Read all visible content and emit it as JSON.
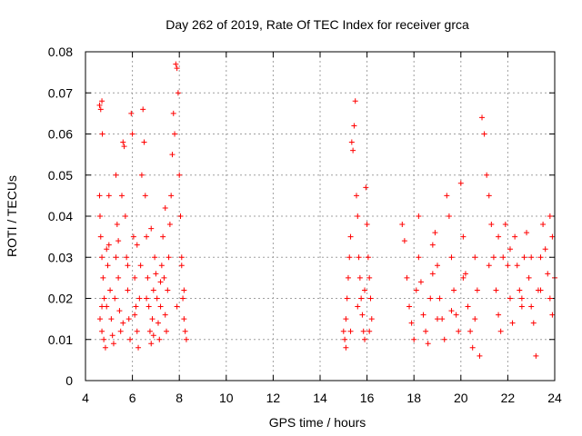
{
  "chart_data": {
    "type": "scatter",
    "title": "Day 262 of 2019, Rate Of TEC Index for receiver grca",
    "xlabel": "GPS time / hours",
    "ylabel": "ROTI / TECUs",
    "xlim": [
      4,
      24
    ],
    "ylim": [
      0,
      0.08
    ],
    "xticks": [
      4,
      6,
      8,
      10,
      12,
      14,
      16,
      18,
      20,
      22,
      24
    ],
    "yticks": [
      0,
      0.01,
      0.02,
      0.03,
      0.04,
      0.05,
      0.06,
      0.07,
      0.08
    ],
    "ytick_labels": [
      "0",
      "0.01",
      "0.02",
      "0.03",
      "0.04",
      "0.05",
      "0.06",
      "0.07",
      "0.08"
    ],
    "grid": true,
    "marker": "+",
    "color": "#ff0000",
    "series": [
      {
        "points": [
          [
            4.6,
            0.067
          ],
          [
            4.65,
            0.066
          ],
          [
            4.7,
            0.068
          ],
          [
            4.72,
            0.06
          ],
          [
            4.6,
            0.045
          ],
          [
            4.62,
            0.04
          ],
          [
            4.65,
            0.035
          ],
          [
            4.7,
            0.03
          ],
          [
            4.75,
            0.025
          ],
          [
            4.8,
            0.02
          ],
          [
            4.62,
            0.015
          ],
          [
            4.7,
            0.012
          ],
          [
            4.78,
            0.01
          ],
          [
            4.85,
            0.008
          ],
          [
            4.9,
            0.018
          ],
          [
            4.95,
            0.028
          ],
          [
            5.0,
            0.033
          ],
          [
            5.05,
            0.022
          ],
          [
            5.1,
            0.015
          ],
          [
            5.15,
            0.011
          ],
          [
            5.2,
            0.009
          ],
          [
            5.25,
            0.02
          ],
          [
            5.3,
            0.03
          ],
          [
            5.35,
            0.038
          ],
          [
            5.4,
            0.025
          ],
          [
            5.45,
            0.017
          ],
          [
            5.5,
            0.012
          ],
          [
            5.55,
            0.045
          ],
          [
            5.6,
            0.058
          ],
          [
            5.65,
            0.057
          ],
          [
            5.7,
            0.04
          ],
          [
            5.75,
            0.03
          ],
          [
            5.8,
            0.022
          ],
          [
            5.85,
            0.015
          ],
          [
            5.9,
            0.01
          ],
          [
            5.95,
            0.065
          ],
          [
            6.0,
            0.06
          ],
          [
            6.05,
            0.035
          ],
          [
            6.1,
            0.025
          ],
          [
            6.15,
            0.018
          ],
          [
            6.2,
            0.012
          ],
          [
            6.25,
            0.008
          ],
          [
            6.3,
            0.02
          ],
          [
            6.35,
            0.028
          ],
          [
            6.4,
            0.05
          ],
          [
            6.45,
            0.066
          ],
          [
            6.5,
            0.058
          ],
          [
            6.55,
            0.045
          ],
          [
            6.6,
            0.035
          ],
          [
            6.65,
            0.025
          ],
          [
            6.7,
            0.018
          ],
          [
            6.75,
            0.012
          ],
          [
            6.8,
            0.009
          ],
          [
            6.85,
            0.015
          ],
          [
            6.9,
            0.022
          ],
          [
            6.95,
            0.03
          ],
          [
            7.0,
            0.026
          ],
          [
            7.05,
            0.02
          ],
          [
            7.1,
            0.014
          ],
          [
            7.15,
            0.01
          ],
          [
            7.2,
            0.018
          ],
          [
            7.25,
            0.028
          ],
          [
            7.3,
            0.035
          ],
          [
            7.35,
            0.025
          ],
          [
            7.4,
            0.016
          ],
          [
            7.45,
            0.012
          ],
          [
            7.5,
            0.022
          ],
          [
            7.55,
            0.03
          ],
          [
            7.6,
            0.038
          ],
          [
            7.65,
            0.045
          ],
          [
            7.7,
            0.055
          ],
          [
            7.75,
            0.065
          ],
          [
            7.8,
            0.06
          ],
          [
            7.85,
            0.077
          ],
          [
            7.9,
            0.076
          ],
          [
            7.95,
            0.07
          ],
          [
            8.0,
            0.05
          ],
          [
            8.05,
            0.04
          ],
          [
            8.1,
            0.03
          ],
          [
            8.15,
            0.02
          ],
          [
            8.2,
            0.015
          ],
          [
            8.25,
            0.012
          ],
          [
            8.3,
            0.01
          ],
          [
            5.0,
            0.045
          ],
          [
            5.3,
            0.05
          ],
          [
            5.8,
            0.028
          ],
          [
            6.2,
            0.033
          ],
          [
            6.8,
            0.037
          ],
          [
            7.4,
            0.042
          ],
          [
            8.1,
            0.028
          ],
          [
            4.9,
            0.032
          ],
          [
            5.4,
            0.034
          ],
          [
            6.1,
            0.016
          ],
          [
            6.6,
            0.02
          ],
          [
            7.2,
            0.024
          ],
          [
            7.9,
            0.018
          ],
          [
            8.2,
            0.022
          ],
          [
            4.7,
            0.018
          ],
          [
            5.6,
            0.014
          ],
          [
            6.9,
            0.011
          ],
          [
            15.0,
            0.012
          ],
          [
            15.05,
            0.01
          ],
          [
            15.1,
            0.015
          ],
          [
            15.15,
            0.02
          ],
          [
            15.2,
            0.025
          ],
          [
            15.25,
            0.03
          ],
          [
            15.3,
            0.035
          ],
          [
            15.35,
            0.058
          ],
          [
            15.4,
            0.056
          ],
          [
            15.45,
            0.062
          ],
          [
            15.5,
            0.068
          ],
          [
            15.55,
            0.045
          ],
          [
            15.6,
            0.04
          ],
          [
            15.65,
            0.03
          ],
          [
            15.7,
            0.025
          ],
          [
            15.75,
            0.02
          ],
          [
            15.8,
            0.016
          ],
          [
            15.85,
            0.012
          ],
          [
            15.9,
            0.01
          ],
          [
            15.95,
            0.047
          ],
          [
            16.0,
            0.038
          ],
          [
            16.05,
            0.03
          ],
          [
            16.1,
            0.025
          ],
          [
            16.15,
            0.02
          ],
          [
            16.2,
            0.015
          ],
          [
            15.1,
            0.008
          ],
          [
            15.3,
            0.012
          ],
          [
            15.6,
            0.018
          ],
          [
            15.9,
            0.022
          ],
          [
            16.1,
            0.012
          ],
          [
            17.5,
            0.038
          ],
          [
            17.6,
            0.034
          ],
          [
            17.7,
            0.025
          ],
          [
            17.8,
            0.018
          ],
          [
            17.9,
            0.014
          ],
          [
            18.0,
            0.01
          ],
          [
            18.1,
            0.022
          ],
          [
            18.2,
            0.03
          ],
          [
            18.3,
            0.024
          ],
          [
            18.4,
            0.016
          ],
          [
            18.5,
            0.012
          ],
          [
            18.6,
            0.009
          ],
          [
            18.7,
            0.02
          ],
          [
            18.8,
            0.033
          ],
          [
            18.9,
            0.036
          ],
          [
            19.0,
            0.028
          ],
          [
            19.1,
            0.02
          ],
          [
            19.2,
            0.015
          ],
          [
            19.3,
            0.01
          ],
          [
            19.4,
            0.045
          ],
          [
            19.5,
            0.04
          ],
          [
            19.6,
            0.03
          ],
          [
            19.7,
            0.022
          ],
          [
            19.8,
            0.016
          ],
          [
            19.9,
            0.012
          ],
          [
            20.0,
            0.048
          ],
          [
            20.1,
            0.035
          ],
          [
            20.2,
            0.026
          ],
          [
            20.3,
            0.018
          ],
          [
            20.4,
            0.012
          ],
          [
            20.5,
            0.008
          ],
          [
            20.6,
            0.015
          ],
          [
            20.7,
            0.022
          ],
          [
            20.8,
            0.006
          ],
          [
            20.9,
            0.064
          ],
          [
            21.0,
            0.06
          ],
          [
            21.1,
            0.05
          ],
          [
            21.2,
            0.045
          ],
          [
            21.3,
            0.038
          ],
          [
            21.4,
            0.03
          ],
          [
            21.5,
            0.022
          ],
          [
            21.6,
            0.016
          ],
          [
            21.7,
            0.012
          ],
          [
            21.8,
            0.03
          ],
          [
            21.9,
            0.038
          ],
          [
            22.0,
            0.028
          ],
          [
            22.1,
            0.02
          ],
          [
            22.2,
            0.014
          ],
          [
            22.3,
            0.035
          ],
          [
            22.4,
            0.028
          ],
          [
            22.5,
            0.022
          ],
          [
            22.6,
            0.018
          ],
          [
            22.7,
            0.03
          ],
          [
            22.8,
            0.036
          ],
          [
            22.9,
            0.025
          ],
          [
            23.0,
            0.018
          ],
          [
            23.1,
            0.014
          ],
          [
            23.2,
            0.006
          ],
          [
            23.3,
            0.022
          ],
          [
            23.4,
            0.03
          ],
          [
            23.5,
            0.038
          ],
          [
            23.6,
            0.032
          ],
          [
            23.7,
            0.026
          ],
          [
            23.8,
            0.02
          ],
          [
            23.9,
            0.016
          ],
          [
            24.0,
            0.025
          ],
          [
            18.2,
            0.04
          ],
          [
            19.0,
            0.015
          ],
          [
            20.1,
            0.025
          ],
          [
            21.2,
            0.028
          ],
          [
            22.1,
            0.032
          ],
          [
            23.0,
            0.03
          ],
          [
            23.8,
            0.04
          ],
          [
            18.8,
            0.026
          ],
          [
            19.6,
            0.017
          ],
          [
            20.6,
            0.03
          ],
          [
            21.6,
            0.035
          ],
          [
            22.6,
            0.02
          ],
          [
            23.4,
            0.022
          ],
          [
            23.9,
            0.035
          ]
        ]
      }
    ]
  }
}
